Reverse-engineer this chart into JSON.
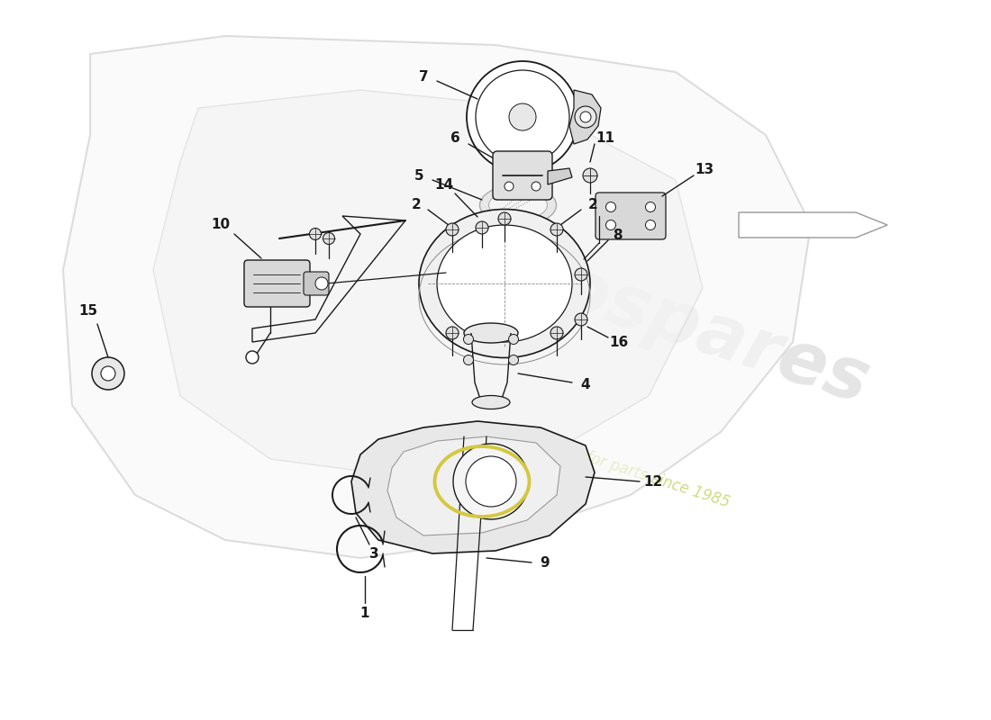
{
  "bg_color": "#ffffff",
  "line_color": "#1a1a1a",
  "yellow_color": "#d4c840",
  "watermark_color1": "#cccccc",
  "watermark_color2": "#b8c840",
  "body_fill": "#f0f0f0",
  "body_edge": "#aaaaaa",
  "parts_light_fill": "#e8e8e8",
  "parts_dark_fill": "#d0d0d0",
  "arrow_fill": "#ffffff",
  "arrow_edge": "#888888"
}
